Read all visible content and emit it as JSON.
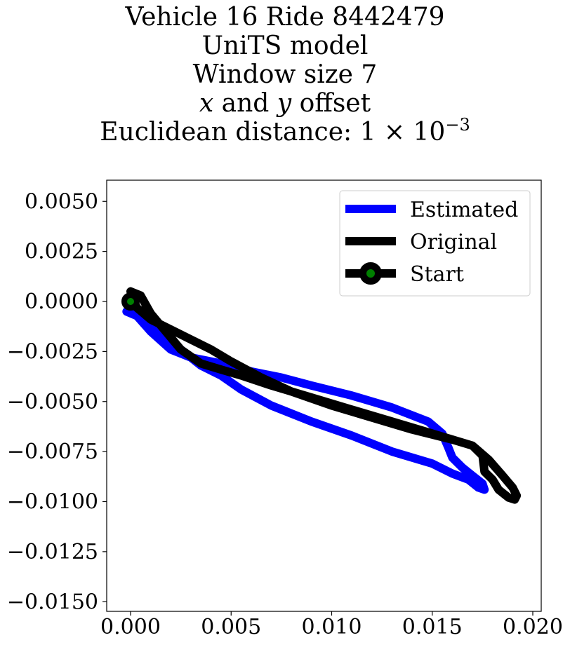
{
  "chart_data": {
    "type": "line",
    "title_lines": {
      "line1": "Vehicle 16 Ride 8442479",
      "line2": "UniTS model",
      "line3": "Window size 7",
      "line4_x": "x",
      "line4_mid": " and ",
      "line4_y": "y",
      "line4_end": " offset",
      "line5_prefix": "Euclidean distance: 1 × 10",
      "line5_exp": "−3"
    },
    "xlabel": "",
    "ylabel": "",
    "xlim": [
      -0.00065,
      0.0204
    ],
    "ylim": [
      -0.0155,
      0.006
    ],
    "x_ticks": [
      {
        "value": 0.0,
        "label": "0.000"
      },
      {
        "value": 0.005,
        "label": "0.005"
      },
      {
        "value": 0.01,
        "label": "0.010"
      },
      {
        "value": 0.015,
        "label": "0.015"
      },
      {
        "value": 0.02,
        "label": "0.020"
      }
    ],
    "y_ticks": [
      {
        "value": 0.005,
        "label": "0.0050"
      },
      {
        "value": 0.0025,
        "label": "0.0025"
      },
      {
        "value": 0.0,
        "label": "0.0000"
      },
      {
        "value": -0.0025,
        "label": "−0.0025"
      },
      {
        "value": -0.005,
        "label": "−0.0050"
      },
      {
        "value": -0.0075,
        "label": "−0.0075"
      },
      {
        "value": -0.01,
        "label": "−0.0100"
      },
      {
        "value": -0.0125,
        "label": "−0.0125"
      },
      {
        "value": -0.015,
        "label": "−0.0150"
      }
    ],
    "grid": false,
    "legend_position": "top-right",
    "series": [
      {
        "name": "Estimated",
        "color": "#0000ff",
        "x": [
          -0.0002,
          0.0005,
          0.0015,
          0.0025,
          0.0035,
          0.0045,
          0.0055,
          0.007,
          0.009,
          0.011,
          0.013,
          0.015,
          0.016,
          0.0168,
          0.0173,
          0.0176,
          0.0175,
          0.017,
          0.0165,
          0.016,
          0.0158,
          0.0155,
          0.0148,
          0.013,
          0.011,
          0.009,
          0.0075,
          0.006,
          0.005,
          0.004,
          0.003,
          0.002,
          0.001,
          0.0003,
          -0.0002
        ],
        "y": [
          -0.0005,
          -0.0008,
          -0.0015,
          -0.0024,
          -0.0032,
          -0.0037,
          -0.0044,
          -0.0052,
          -0.006,
          -0.0067,
          -0.0075,
          -0.0081,
          -0.0086,
          -0.0089,
          -0.0093,
          -0.0094,
          -0.0091,
          -0.0087,
          -0.0083,
          -0.0078,
          -0.0073,
          -0.0066,
          -0.006,
          -0.0053,
          -0.0047,
          -0.0042,
          -0.0038,
          -0.0035,
          -0.0032,
          -0.003,
          -0.0028,
          -0.0024,
          -0.0015,
          -0.0007,
          -0.0005
        ]
      },
      {
        "name": "Original",
        "color": "#000000",
        "x": [
          0.0,
          0.0005,
          0.001,
          0.0015,
          0.002,
          0.0025,
          0.0035,
          0.0045,
          0.0055,
          0.007,
          0.009,
          0.011,
          0.013,
          0.015,
          0.016,
          0.017,
          0.0178,
          0.0185,
          0.019,
          0.0192,
          0.0191,
          0.0188,
          0.0183,
          0.018,
          0.0176,
          0.0175,
          0.017,
          0.016,
          0.014,
          0.012,
          0.01,
          0.008,
          0.0065,
          0.005,
          0.004,
          0.003,
          0.002,
          0.001,
          0.0003,
          0.0
        ],
        "y": [
          0.0005,
          0.0003,
          -0.0006,
          -0.0012,
          -0.0018,
          -0.0024,
          -0.0031,
          -0.0034,
          -0.0037,
          -0.0042,
          -0.0048,
          -0.0054,
          -0.006,
          -0.0066,
          -0.0069,
          -0.0072,
          -0.0079,
          -0.0087,
          -0.0093,
          -0.0097,
          -0.0099,
          -0.0098,
          -0.0094,
          -0.0089,
          -0.0085,
          -0.0077,
          -0.0072,
          -0.0069,
          -0.0064,
          -0.0058,
          -0.0052,
          -0.0045,
          -0.0038,
          -0.003,
          -0.0024,
          -0.0019,
          -0.0014,
          -0.0009,
          -0.0003,
          0.0005
        ]
      }
    ],
    "start_marker": {
      "name": "Start",
      "x": 0.0,
      "y": 0.0,
      "fill": "#008000",
      "edge": "#000000"
    }
  }
}
